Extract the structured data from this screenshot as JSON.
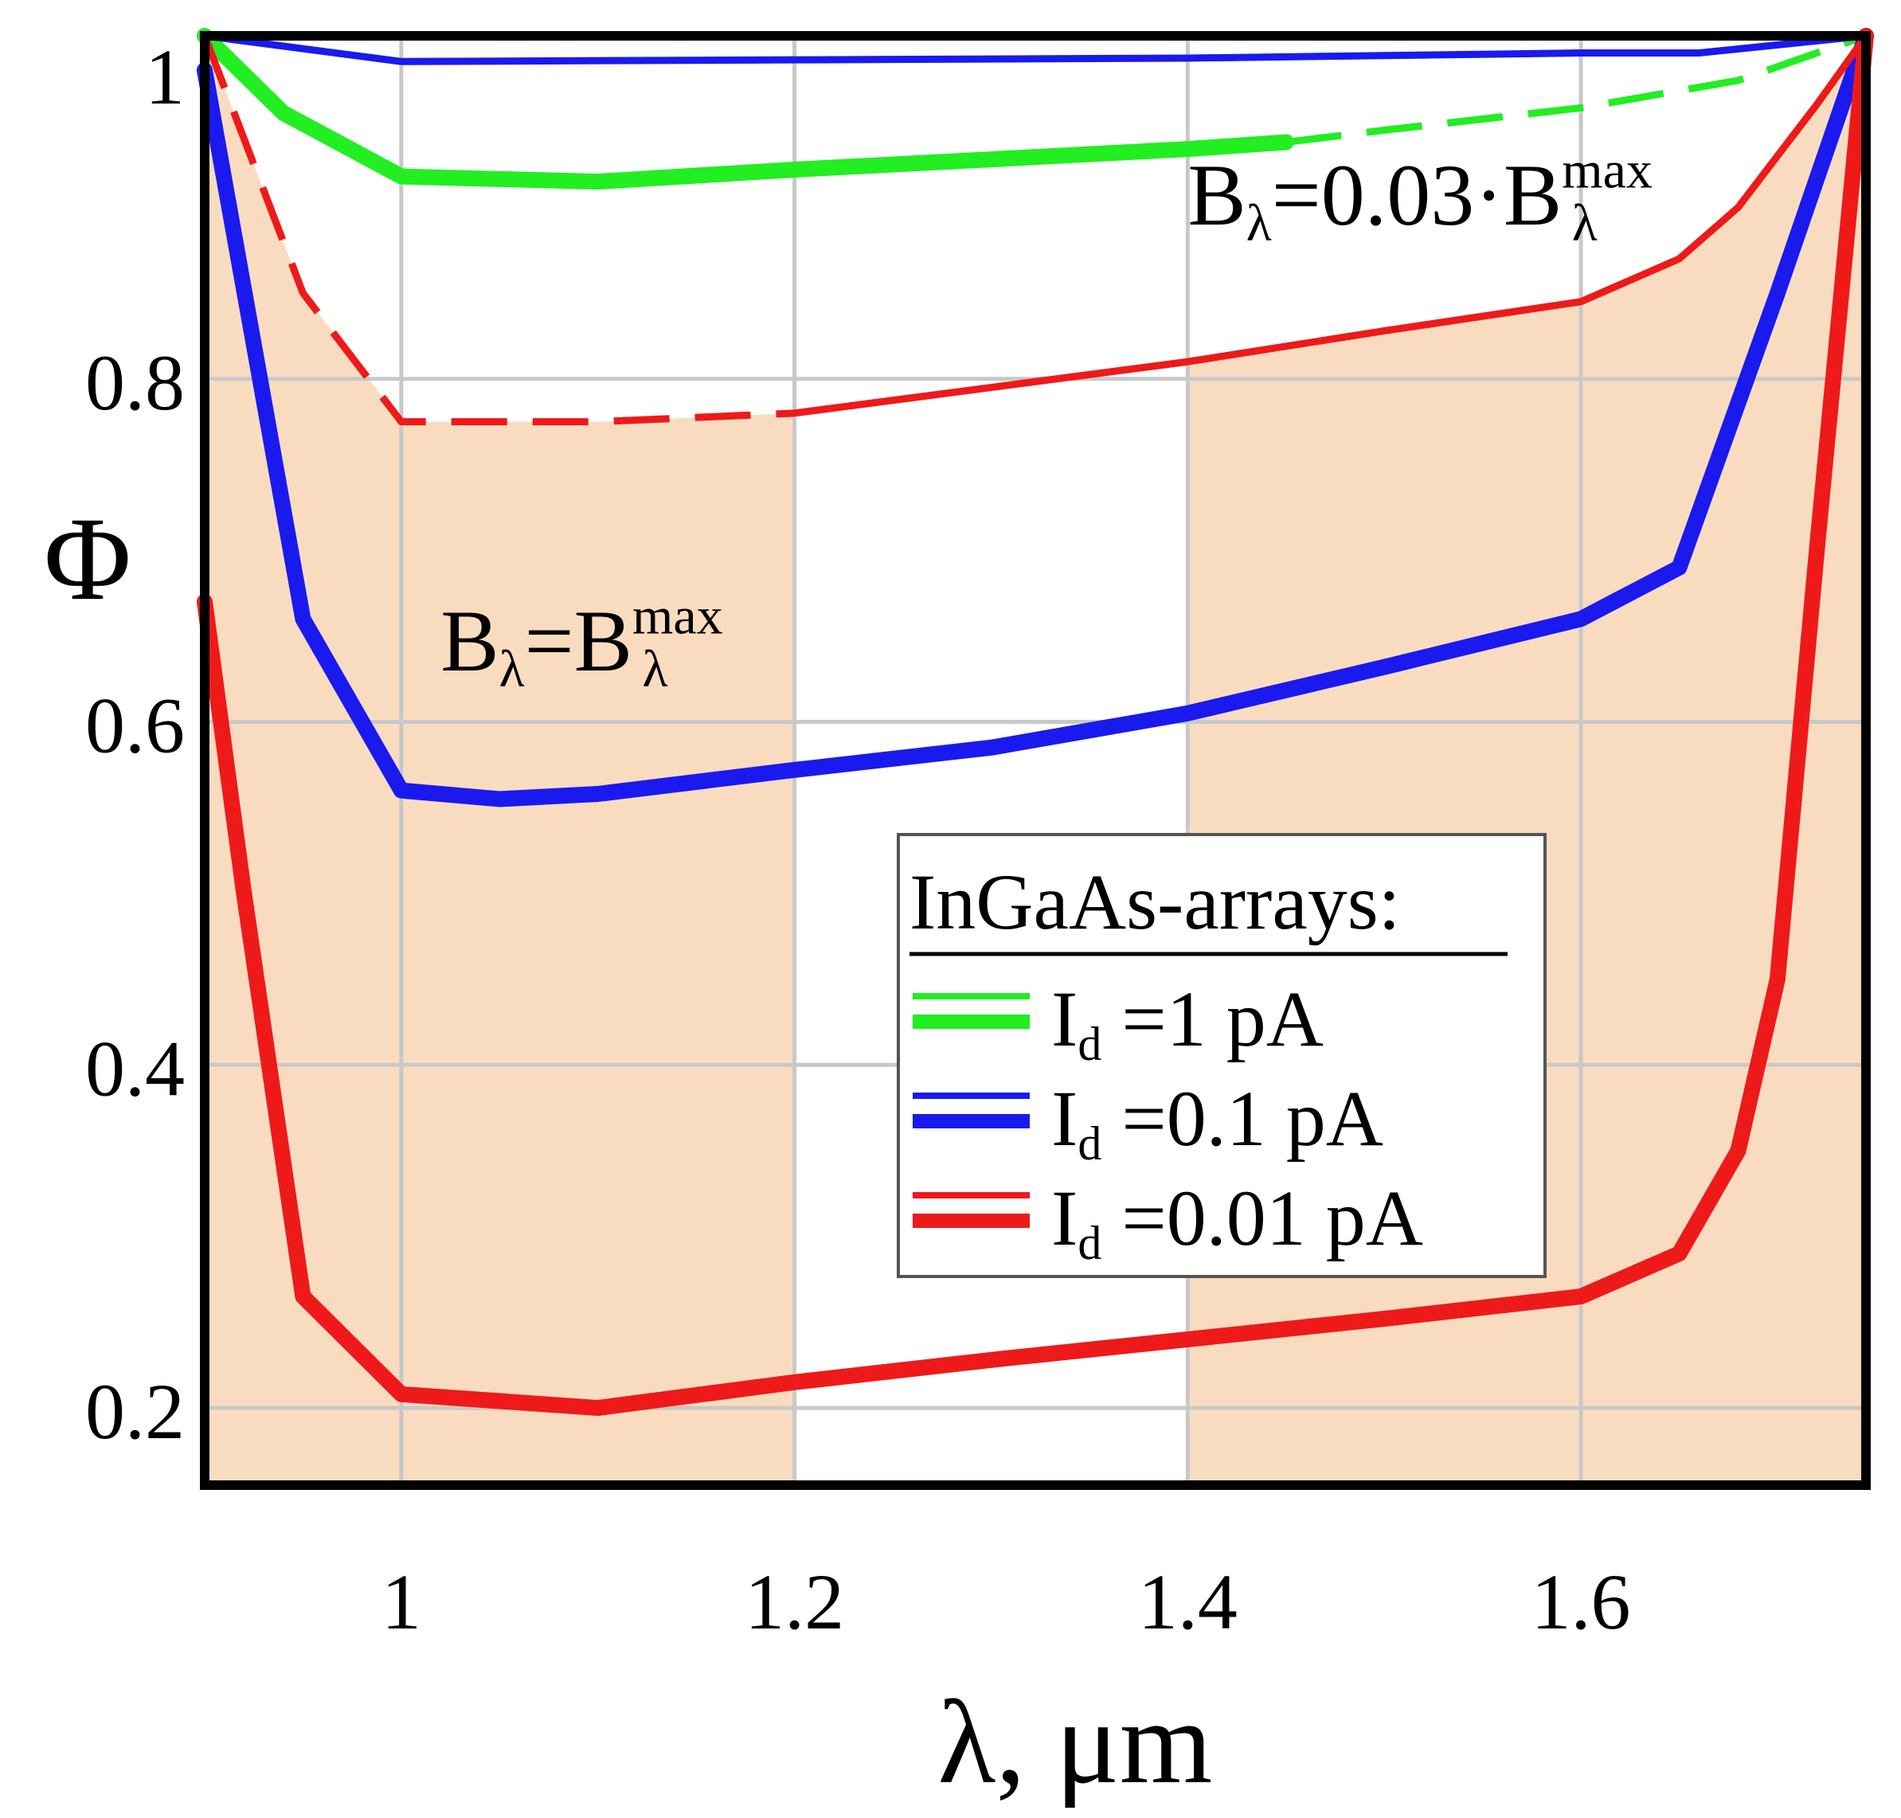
{
  "chart_data": {
    "type": "line",
    "title": "",
    "xlabel": "λ, μm",
    "ylabel": "Φ",
    "xlim": [
      0.9,
      1.745
    ],
    "ylim": [
      0.155,
      1.0
    ],
    "xticks": [
      1,
      1.2,
      1.4,
      1.6
    ],
    "xtick_labels": [
      "1",
      "1.2",
      "1.4",
      "1.6"
    ],
    "yticks": [
      0.2,
      0.4,
      0.6,
      0.8,
      1
    ],
    "ytick_labels": [
      "0.2",
      "0.4",
      "0.6",
      "0.8",
      "1"
    ],
    "grid": true,
    "shaded_regions": [
      {
        "name": "B_lambda = B_lambda_max",
        "x_range": [
          0.9,
          1.2
        ],
        "y_range": [
          0.155,
          1.0
        ],
        "bounded_above_by": "thin-red",
        "color": "#f9dcbf"
      },
      {
        "name": "B_lambda = 0.03 B_lambda_max",
        "x_range": [
          1.4,
          1.745
        ],
        "y_range": [
          0.155,
          1.0
        ],
        "bounded_above_by": "thin-red",
        "color": "#f9dcbf"
      }
    ],
    "annotations": [
      {
        "id": "full",
        "base": "B",
        "sub": "λ",
        "eq": "=",
        "rhs_base": "B",
        "rhs_sub": "λ",
        "rhs_sup": "max",
        "x": 1.02,
        "y": 0.63
      },
      {
        "id": "fraction",
        "base": "B",
        "sub": "λ",
        "eq": "=0.03·",
        "rhs_base": "B",
        "rhs_sub": "λ",
        "rhs_sup": "max",
        "x": 1.4,
        "y": 0.89
      }
    ],
    "legend": {
      "title": "InGaAs-arrays:",
      "placement": "lower-right",
      "entries": [
        {
          "label_base": "I",
          "label_sub": "d",
          "label_rest": " =1 pA",
          "color": "#22ee22"
        },
        {
          "label_base": "I",
          "label_sub": "d",
          "label_rest": " =0.1 pA",
          "color": "#1a1aee"
        },
        {
          "label_base": "I",
          "label_sub": "d",
          "label_rest": " =0.01 pA",
          "color": "#ee1a1a"
        }
      ]
    },
    "series": [
      {
        "id": "thin-green",
        "name": "Id=1 pA (B=0.03·Bmax)",
        "color": "#22ee22",
        "weight": "thin",
        "style": "solid",
        "x": [
          0.9,
          1.745
        ],
        "y": [
          1.0,
          1.0
        ]
      },
      {
        "id": "thick-green",
        "name": "Id=1 pA (B=Bmax)",
        "color": "#22ee22",
        "weight": "thick",
        "style": "solid",
        "x": [
          0.9,
          0.94,
          1.0,
          1.1,
          1.2,
          1.3,
          1.4,
          1.45
        ],
        "y": [
          1.0,
          0.955,
          0.918,
          0.915,
          0.922,
          0.928,
          0.934,
          0.938
        ]
      },
      {
        "id": "dashed-green",
        "name": "Id=1 pA (B=Bmax) continued",
        "color": "#22ee22",
        "weight": "thin",
        "style": "dashed",
        "x": [
          1.45,
          1.5,
          1.6,
          1.68,
          1.745
        ],
        "y": [
          0.938,
          0.945,
          0.958,
          0.974,
          1.0
        ]
      },
      {
        "id": "thin-blue",
        "name": "Id=0.1 pA (B=0.03·Bmax)",
        "color": "#1a1aee",
        "weight": "thin",
        "style": "solid",
        "x": [
          0.9,
          1.0,
          1.2,
          1.4,
          1.6,
          1.66,
          1.745
        ],
        "y": [
          1.0,
          0.985,
          0.986,
          0.987,
          0.99,
          0.99,
          1.0
        ]
      },
      {
        "id": "thick-blue",
        "name": "Id=0.1 pA (B=Bmax)",
        "color": "#1a1aee",
        "weight": "thick",
        "style": "solid",
        "x": [
          0.9,
          0.95,
          1.0,
          1.05,
          1.1,
          1.2,
          1.3,
          1.4,
          1.5,
          1.6,
          1.65,
          1.7,
          1.745
        ],
        "y": [
          0.98,
          0.66,
          0.56,
          0.555,
          0.558,
          0.572,
          0.585,
          0.605,
          0.632,
          0.66,
          0.69,
          0.85,
          1.0
        ]
      },
      {
        "id": "dashed-red",
        "name": "Id=0.01 pA (B=0.03·Bmax)",
        "color": "#ee1a1a",
        "weight": "thin",
        "style": "dashed",
        "x": [
          0.9,
          0.95,
          1.0,
          1.1,
          1.2
        ],
        "y": [
          1.0,
          0.85,
          0.775,
          0.775,
          0.78
        ]
      },
      {
        "id": "thin-red",
        "name": "Id=0.01 pA (B=0.03·Bmax) continued",
        "color": "#ee1a1a",
        "weight": "thin",
        "style": "solid",
        "x": [
          1.2,
          1.3,
          1.4,
          1.5,
          1.6,
          1.65,
          1.68,
          1.72,
          1.745
        ],
        "y": [
          0.78,
          0.795,
          0.81,
          0.828,
          0.845,
          0.87,
          0.9,
          0.96,
          1.0
        ]
      },
      {
        "id": "thick-red",
        "name": "Id=0.01 pA (B=Bmax)",
        "color": "#ee1a1a",
        "weight": "thick",
        "style": "solid",
        "x": [
          0.9,
          0.92,
          0.95,
          1.0,
          1.1,
          1.2,
          1.3,
          1.4,
          1.5,
          1.6,
          1.65,
          1.68,
          1.7,
          1.72,
          1.745
        ],
        "y": [
          0.67,
          0.5,
          0.265,
          0.208,
          0.2,
          0.215,
          0.228,
          0.24,
          0.252,
          0.265,
          0.29,
          0.35,
          0.45,
          0.7,
          1.0
        ]
      }
    ]
  }
}
